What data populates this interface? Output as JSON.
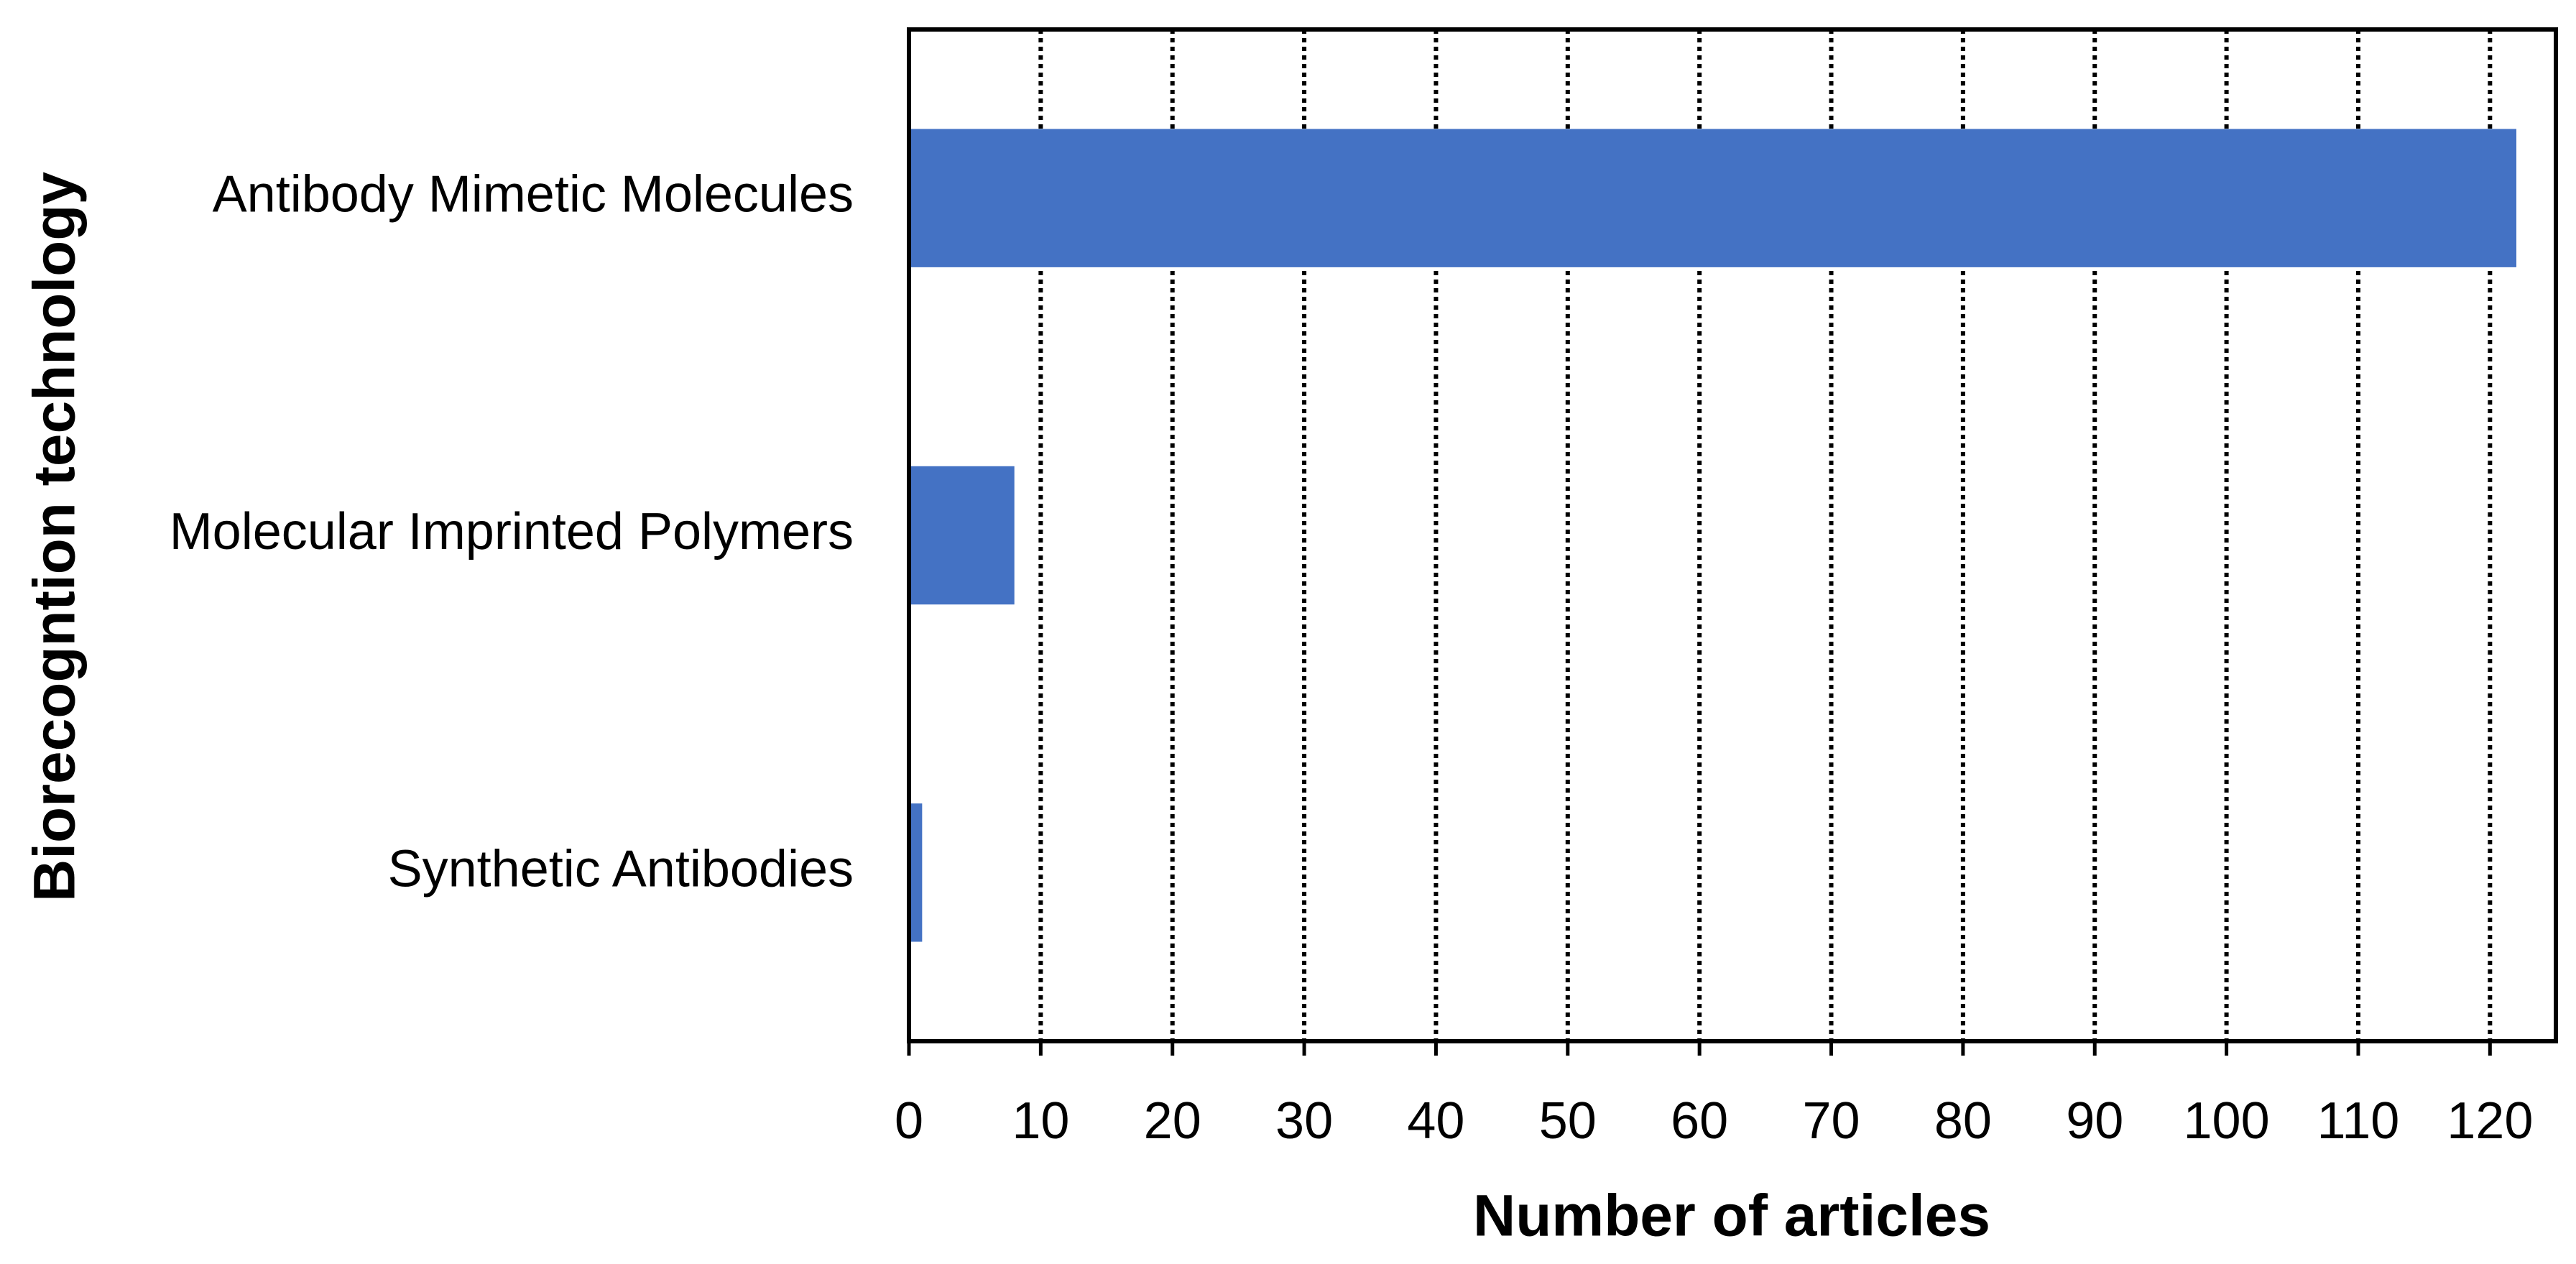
{
  "chart_data": {
    "type": "bar",
    "orientation": "horizontal",
    "x_label": "Number of articles",
    "y_label": "Biorecogntion technology",
    "categories": [
      "Antibody Mimetic Molecules",
      "Molecular Imprinted Polymers",
      "Synthetic Antibodies"
    ],
    "values": [
      122,
      8,
      1
    ],
    "color": "#4472c4",
    "xlim": [
      0,
      125
    ],
    "xticks": [
      0,
      10,
      20,
      30,
      40,
      50,
      60,
      70,
      80,
      90,
      100,
      110,
      120
    ],
    "grid": true
  }
}
